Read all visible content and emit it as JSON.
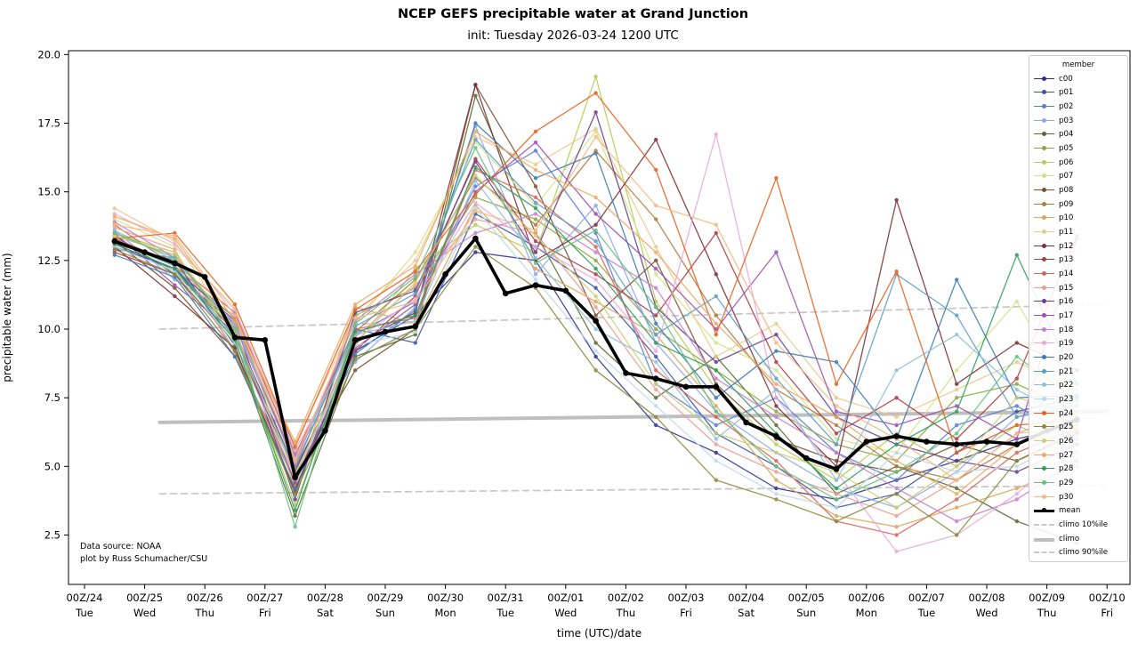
{
  "chart_data": {
    "type": "line",
    "title": "NCEP GEFS precipitable water at Grand Junction",
    "subtitle": "init: Tuesday 2026-03-24 1200 UTC",
    "xlabel": "time (UTC)/date",
    "ylabel": "precipitable water (mm)",
    "ylim": [
      0.7,
      20.2
    ],
    "xlim_days": [
      -0.27,
      17.4
    ],
    "grid": false,
    "legend_title": "member",
    "legend_position": "upper right",
    "annotations": [
      "Data source: NOAA",
      "plot by Russ Schumacher/CSU"
    ],
    "yticks": [
      "2.5",
      "5.0",
      "7.5",
      "10.0",
      "12.5",
      "15.0",
      "17.5",
      "20.0"
    ],
    "ytick_values": [
      2.5,
      5.0,
      7.5,
      10.0,
      12.5,
      15.0,
      17.5,
      20.0
    ],
    "xtick_positions_days": [
      0,
      1,
      2,
      3,
      4,
      5,
      6,
      7,
      8,
      9,
      10,
      11,
      12,
      13,
      14,
      15,
      16,
      17
    ],
    "xtick_labels_top": [
      "00Z/24",
      "00Z/25",
      "00Z/26",
      "00Z/27",
      "00Z/28",
      "00Z/29",
      "00Z/30",
      "00Z/31",
      "00Z/01",
      "00Z/02",
      "00Z/03",
      "00Z/04",
      "00Z/05",
      "00Z/06",
      "00Z/07",
      "00Z/08",
      "00Z/09",
      "00Z/10"
    ],
    "xtick_labels_bottom": [
      "Tue",
      "Wed",
      "Thu",
      "Fri",
      "Sat",
      "Sun",
      "Mon",
      "Tue",
      "Wed",
      "Thu",
      "Fri",
      "Sat",
      "Sun",
      "Mon",
      "Tue",
      "Wed",
      "Thu",
      "Fri"
    ],
    "x_members_days": [
      0.5,
      1.5,
      2.5,
      3.5,
      4.5,
      5.5,
      6.5,
      7.5,
      8.5,
      9.5,
      10.5,
      11.5,
      12.5,
      13.5,
      14.5,
      15.5,
      16.5
    ],
    "x_mean_days": [
      0.5,
      1.0,
      1.5,
      2.0,
      2.5,
      3.0,
      3.5,
      4.0,
      4.5,
      5.0,
      5.5,
      6.0,
      6.5,
      7.0,
      7.5,
      8.0,
      8.5,
      9.0,
      9.5,
      10.0,
      10.5,
      11.0,
      11.5,
      12.0,
      12.5,
      13.0,
      13.5,
      14.0,
      14.5,
      15.0,
      15.5,
      16.0,
      16.5
    ],
    "members": [
      {
        "name": "c00",
        "color": "#2d2f8f",
        "values": [
          13.0,
          12.2,
          9.9,
          4.9,
          9.2,
          10.5,
          12.8,
          12.5,
          9.0,
          6.5,
          5.5,
          4.2,
          3.8,
          4.5,
          5.2,
          6.0,
          6.5
        ]
      },
      {
        "name": "p01",
        "color": "#3b53a4",
        "values": [
          13.4,
          12.0,
          10.2,
          5.2,
          10.0,
          9.5,
          14.2,
          13.0,
          11.5,
          9.0,
          6.2,
          5.0,
          3.5,
          4.0,
          5.5,
          7.0,
          7.5
        ]
      },
      {
        "name": "p02",
        "color": "#5b7bd5",
        "values": [
          12.9,
          12.6,
          9.2,
          4.4,
          9.8,
          11.0,
          15.2,
          16.5,
          13.5,
          8.0,
          6.5,
          7.5,
          5.5,
          4.5,
          6.5,
          7.2,
          6.0
        ]
      },
      {
        "name": "p03",
        "color": "#8fa8e8",
        "values": [
          13.6,
          11.8,
          10.5,
          5.5,
          8.8,
          10.8,
          17.4,
          12.0,
          14.5,
          9.5,
          7.0,
          5.5,
          4.2,
          3.5,
          4.8,
          6.8,
          7.4
        ]
      },
      {
        "name": "p04",
        "color": "#5a6b2f",
        "values": [
          13.1,
          12.5,
          9.4,
          3.2,
          9.0,
          9.8,
          18.5,
          13.5,
          9.5,
          7.5,
          9.0,
          6.5,
          4.0,
          5.0,
          4.2,
          3.0,
          2.2
        ]
      },
      {
        "name": "p05",
        "color": "#8aa83f",
        "values": [
          13.3,
          12.1,
          10.0,
          4.0,
          10.5,
          11.5,
          14.8,
          14.0,
          12.5,
          10.0,
          8.5,
          7.0,
          5.8,
          5.2,
          7.5,
          8.0,
          7.0
        ]
      },
      {
        "name": "p06",
        "color": "#b5cc5a",
        "values": [
          13.5,
          12.8,
          9.6,
          3.6,
          9.4,
          12.2,
          13.8,
          12.8,
          19.2,
          11.0,
          7.8,
          5.8,
          4.5,
          6.2,
          5.0,
          6.5,
          5.5
        ]
      },
      {
        "name": "p07",
        "color": "#d4e38a",
        "values": [
          14.0,
          13.0,
          10.8,
          4.2,
          10.2,
          12.8,
          16.8,
          14.5,
          17.2,
          12.0,
          9.5,
          8.5,
          6.0,
          5.5,
          8.5,
          11.0,
          7.2
        ]
      },
      {
        "name": "p08",
        "color": "#7a5230",
        "values": [
          13.2,
          11.5,
          9.0,
          4.7,
          8.5,
          10.0,
          18.9,
          15.2,
          10.5,
          12.5,
          8.0,
          6.0,
          5.2,
          4.8,
          5.8,
          5.2,
          6.2
        ]
      },
      {
        "name": "p09",
        "color": "#b07a3c",
        "values": [
          13.8,
          12.3,
          10.4,
          5.0,
          9.9,
          11.8,
          15.5,
          13.8,
          16.5,
          14.0,
          10.5,
          7.8,
          6.5,
          5.0,
          4.5,
          5.8,
          6.8
        ]
      },
      {
        "name": "p10",
        "color": "#d9a659",
        "values": [
          13.4,
          12.7,
          9.8,
          4.3,
          10.8,
          10.2,
          14.5,
          12.2,
          11.0,
          9.8,
          7.2,
          4.5,
          3.2,
          2.8,
          3.5,
          4.2,
          5.0
        ]
      },
      {
        "name": "p11",
        "color": "#ecc98e",
        "values": [
          14.4,
          13.2,
          10.0,
          5.8,
          10.4,
          12.5,
          17.0,
          16.0,
          17.3,
          13.0,
          9.0,
          10.2,
          7.5,
          6.8,
          7.8,
          8.8,
          7.8
        ]
      },
      {
        "name": "p12",
        "color": "#7a2e35",
        "values": [
          13.0,
          11.2,
          9.3,
          4.1,
          9.5,
          10.6,
          18.9,
          12.5,
          13.8,
          16.9,
          12.0,
          7.2,
          5.0,
          14.7,
          8.0,
          9.5,
          8.5
        ]
      },
      {
        "name": "p13",
        "color": "#b03a3f",
        "values": [
          12.8,
          12.0,
          9.5,
          4.8,
          9.2,
          11.2,
          16.2,
          13.2,
          12.0,
          10.5,
          13.5,
          8.8,
          6.2,
          7.5,
          6.0,
          8.2,
          13.4
        ]
      },
      {
        "name": "p14",
        "color": "#d96459",
        "values": [
          13.3,
          12.4,
          10.6,
          5.4,
          10.0,
          10.4,
          15.8,
          14.8,
          13.0,
          8.5,
          6.8,
          5.2,
          3.0,
          2.5,
          3.8,
          5.5,
          6.4
        ]
      },
      {
        "name": "p15",
        "color": "#ee9c94",
        "values": [
          13.7,
          12.9,
          9.1,
          4.5,
          9.7,
          11.6,
          14.0,
          13.5,
          10.8,
          7.8,
          5.8,
          4.8,
          4.0,
          3.2,
          4.5,
          6.2,
          7.0
        ]
      },
      {
        "name": "p16",
        "color": "#6a3d8f",
        "values": [
          13.1,
          12.2,
          10.3,
          3.8,
          10.6,
          11.4,
          16.1,
          12.8,
          17.9,
          10.8,
          8.8,
          9.8,
          6.8,
          5.8,
          5.2,
          4.8,
          5.8
        ]
      },
      {
        "name": "p17",
        "color": "#9c4fae",
        "values": [
          13.5,
          11.6,
          9.9,
          4.4,
          9.3,
          10.9,
          15.0,
          16.8,
          14.2,
          12.2,
          10.0,
          12.8,
          7.0,
          6.5,
          7.2,
          6.0,
          13.3
        ]
      },
      {
        "name": "p18",
        "color": "#c77fd0",
        "values": [
          13.9,
          12.6,
          10.1,
          5.1,
          10.3,
          12.0,
          13.5,
          14.2,
          12.8,
          11.5,
          8.2,
          6.8,
          5.5,
          4.2,
          3.0,
          3.8,
          5.2
        ]
      },
      {
        "name": "p19",
        "color": "#e8aadb",
        "values": [
          14.2,
          13.1,
          10.7,
          5.6,
          9.6,
          11.1,
          14.6,
          13.0,
          11.8,
          9.2,
          17.1,
          7.5,
          4.8,
          1.9,
          2.5,
          4.0,
          6.0
        ]
      },
      {
        "name": "p20",
        "color": "#3c7ab5",
        "values": [
          12.7,
          11.9,
          9.0,
          4.2,
          9.1,
          10.7,
          17.5,
          15.5,
          16.4,
          10.2,
          7.5,
          9.2,
          8.8,
          6.0,
          11.8,
          7.5,
          7.6
        ]
      },
      {
        "name": "p21",
        "color": "#5b9ec9",
        "values": [
          13.2,
          12.3,
          9.7,
          4.9,
          10.1,
          11.3,
          16.9,
          14.6,
          13.2,
          9.8,
          11.2,
          8.2,
          5.8,
          12.0,
          10.5,
          6.8,
          7.2
        ]
      },
      {
        "name": "p22",
        "color": "#8cc0de",
        "values": [
          13.6,
          12.5,
          10.2,
          5.3,
          9.8,
          10.3,
          15.4,
          12.6,
          10.0,
          8.8,
          6.0,
          7.8,
          4.5,
          8.5,
          9.8,
          7.8,
          6.6
        ]
      },
      {
        "name": "p23",
        "color": "#bcd9ec",
        "values": [
          13.0,
          12.1,
          9.5,
          4.6,
          9.4,
          9.9,
          14.4,
          11.8,
          9.2,
          7.2,
          5.2,
          4.0,
          3.5,
          5.5,
          4.8,
          5.0,
          6.1
        ]
      },
      {
        "name": "p24",
        "color": "#e8601c",
        "values": [
          13.3,
          13.5,
          10.9,
          5.7,
          10.7,
          12.1,
          14.9,
          17.2,
          18.6,
          15.8,
          9.8,
          15.5,
          8.0,
          12.1,
          5.5,
          6.5,
          6.7
        ]
      },
      {
        "name": "p25",
        "color": "#8a8a3a",
        "values": [
          12.9,
          12.0,
          9.2,
          4.0,
          8.9,
          10.0,
          13.0,
          11.5,
          8.5,
          6.8,
          4.5,
          3.8,
          3.0,
          4.0,
          2.5,
          5.2,
          6.3
        ]
      },
      {
        "name": "p26",
        "color": "#cfcf74",
        "values": [
          13.4,
          12.8,
          9.9,
          4.7,
          9.5,
          11.7,
          15.6,
          13.4,
          11.2,
          8.0,
          6.2,
          5.5,
          4.8,
          3.5,
          5.0,
          7.5,
          6.9
        ]
      },
      {
        "name": "p27",
        "color": "#f0a860",
        "values": [
          14.1,
          13.3,
          10.3,
          5.9,
          10.9,
          12.3,
          17.2,
          15.8,
          14.8,
          12.8,
          10.2,
          8.0,
          6.8,
          5.2,
          4.0,
          5.8,
          6.5
        ]
      },
      {
        "name": "p28",
        "color": "#2e9e5b",
        "values": [
          13.1,
          12.2,
          9.6,
          3.4,
          9.9,
          10.5,
          15.9,
          14.4,
          12.2,
          9.5,
          8.5,
          6.2,
          4.2,
          5.8,
          7.0,
          12.7,
          8.0
        ]
      },
      {
        "name": "p29",
        "color": "#66c27e",
        "values": [
          13.5,
          12.6,
          10.0,
          2.8,
          10.2,
          11.9,
          16.6,
          12.4,
          13.6,
          10.8,
          7.0,
          5.0,
          3.8,
          4.8,
          6.2,
          9.0,
          7.4
        ]
      },
      {
        "name": "p30",
        "color": "#f5b97f",
        "values": [
          13.8,
          13.4,
          10.5,
          5.2,
          10.4,
          11.0,
          14.3,
          13.6,
          17.0,
          14.5,
          13.8,
          9.5,
          7.2,
          6.0,
          4.5,
          6.2,
          6.4
        ]
      }
    ],
    "mean": {
      "name": "mean",
      "color": "#000000",
      "values": [
        13.2,
        12.8,
        12.4,
        11.9,
        9.7,
        9.6,
        4.6,
        6.3,
        9.6,
        9.9,
        10.1,
        12.0,
        13.3,
        11.3,
        11.6,
        11.4,
        10.3,
        8.4,
        8.2,
        7.9,
        7.9,
        6.6,
        6.1,
        5.3,
        4.9,
        5.9,
        6.1,
        5.9,
        5.8,
        5.9,
        5.8,
        6.3,
        6.7
      ]
    },
    "climo_p10": {
      "name": "climo 10%ile",
      "color": "#c9c9c9",
      "dashed": true,
      "x_days": [
        1.25,
        17.0
      ],
      "values": [
        4.0,
        4.3
      ]
    },
    "climo": {
      "name": "climo",
      "color": "#bfbfbf",
      "dashed": false,
      "x_days": [
        1.25,
        17.0
      ],
      "values": [
        6.6,
        7.0
      ]
    },
    "climo_p90": {
      "name": "climo 90%ile",
      "color": "#c9c9c9",
      "dashed": true,
      "x_days": [
        1.25,
        17.0
      ],
      "values": [
        10.0,
        10.9
      ]
    }
  }
}
